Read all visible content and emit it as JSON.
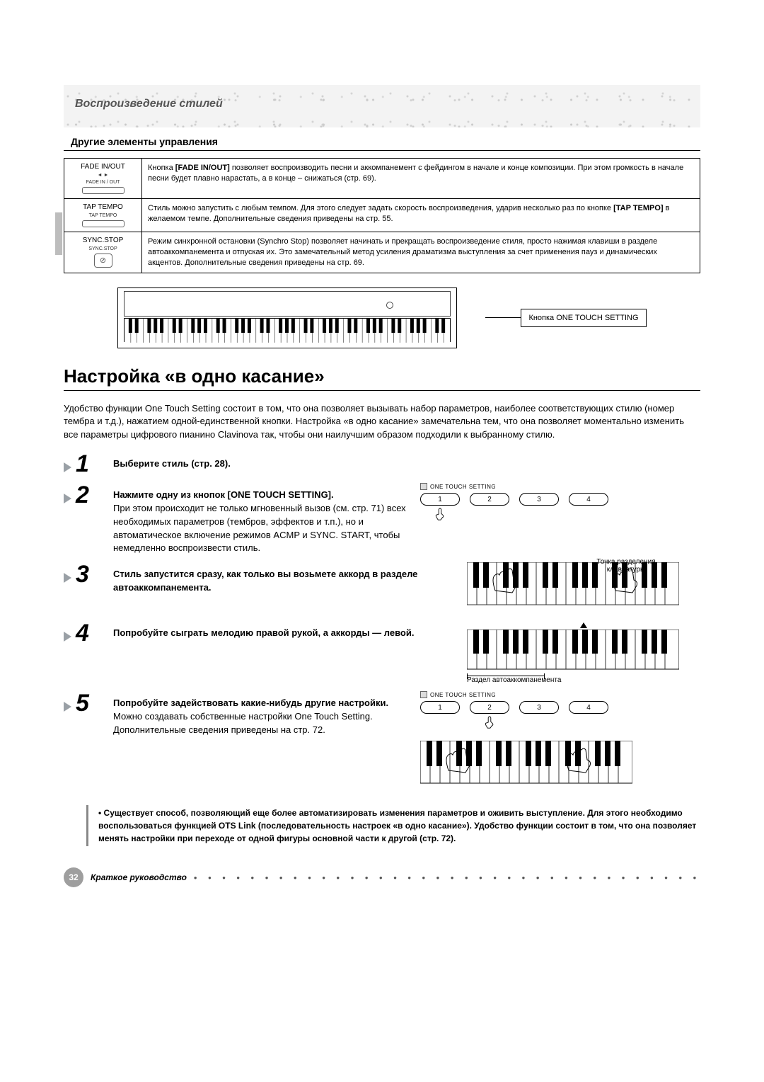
{
  "header": {
    "chapter": "Воспроизведение стилей"
  },
  "controls": {
    "subhead": "Другие элементы управления",
    "rows": [
      {
        "name": "FADE IN/OUT",
        "btn_label": "FADE IN / OUT",
        "arrows": "◄ ►",
        "desc_prefix": "Кнопка ",
        "desc_bold": "[FADE IN/OUT]",
        "desc_rest": " позволяет воспроизводить песни и аккомпанемент с фейдингом в начале и конце композиции. При этом громкость в начале песни будет плавно нарастать, а в конце – снижаться (стр. 69)."
      },
      {
        "name": "TAP TEMPO",
        "btn_label": "TAP TEMPO",
        "desc_prefix": "Стиль можно запустить с любым темпом. Для этого следует задать скорость воспроизведения, ударив несколько раз по кнопке ",
        "desc_bold": "[TAP TEMPO]",
        "desc_rest": " в желаемом темпе. Дополнительные сведения приведены на стр. 55."
      },
      {
        "name": "SYNC.STOP",
        "btn_label": "SYNC.STOP",
        "desc_prefix": "",
        "desc_bold": "",
        "desc_rest": "Режим синхронной остановки (Synchro Stop) позволяет начинать и прекращать воспроизведение стиля, просто нажимая клавиши в разделе автоаккомпанемента и отпуская их. Это замечательный метод усиления драматизма выступления за счет применения пауз и динамических акцентов. Дополнительные сведения приведены на стр. 69."
      }
    ]
  },
  "kbd_callout": "Кнопка ONE TOUCH SETTING",
  "section_title": "Настройка «в одно касание»",
  "intro": "Удобство функции One Touch Setting состоит в том, что она позволяет вызывать набор параметров, наиболее соответствующих стилю (номер тембра и т.д.), нажатием одной-единственной кнопки. Настройка «в одно касание» замечательна тем, что она позволяет моментально изменить все параметры цифрового пианино Clavinova так, чтобы они наилучшим образом подходили к выбранному стилю.",
  "steps": {
    "s1": {
      "bold": "Выберите стиль (стр. 28)."
    },
    "s2": {
      "bold": "Нажмите одну из кнопок [ONE TOUCH SETTING].",
      "rest": "При этом происходит не только мгновенный вызов (см. стр. 71) всех необходимых параметров (тембров, эффектов и т.п.), но и автоматическое включение режимов ACMP и SYNC. START, чтобы немедленно воспроизвести стиль."
    },
    "s3": {
      "bold": "Стиль запустится сразу, как только вы возьмете аккорд в разделе автоаккомпанемента."
    },
    "s4": {
      "bold": "Попробуйте сыграть мелодию правой рукой, а аккорды — левой."
    },
    "s5": {
      "bold": "Попробуйте задействовать какие-нибудь другие настройки.",
      "rest1": "Можно создавать собственные настройки One Touch Setting.",
      "rest2": "Дополнительные сведения приведены на стр. 72."
    }
  },
  "ots": {
    "label": "ONE TOUCH SETTING",
    "buttons": [
      "1",
      "2",
      "3",
      "4"
    ]
  },
  "kbd_labels": {
    "split": "Точка разделения клавиатуры",
    "accomp": "Раздел автоаккомпанемента"
  },
  "tip": "Существует способ, позволяющий еще более автоматизировать изменения параметров и оживить выступление. Для этого необходимо воспользоваться функцией OTS Link (последовательность настроек «в одно касание»). Удобство функции состоит в том, что она позволяет менять настройки при переходе от одной фигуры основной части к другой (стр. 72).",
  "footer": {
    "page": "32",
    "label": "Краткое руководство"
  }
}
